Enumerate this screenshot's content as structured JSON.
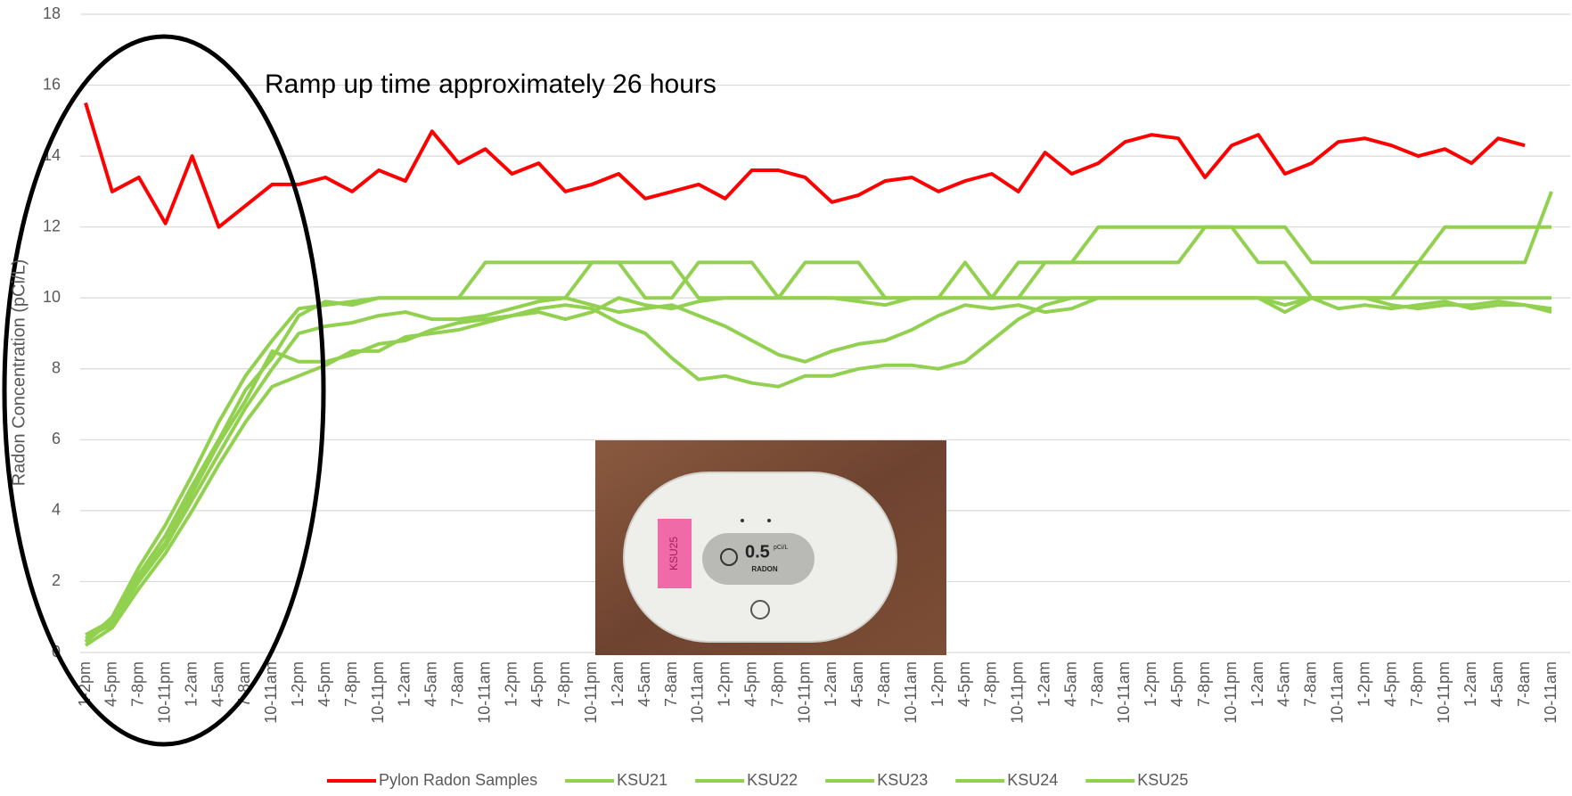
{
  "chart_data": {
    "type": "line",
    "ylabel": "Radon Concentration (pCi/L)",
    "annotation": "Ramp up time approximately 26 hours",
    "inset_photo": {
      "display_value": "0.5",
      "display_unit": "pCi/L",
      "display_label": "RADON",
      "sticker": "KSU25"
    },
    "categories": [
      "1-2pm",
      "4-5pm",
      "7-8pm",
      "10-11pm",
      "1-2am",
      "4-5am",
      "7-8am",
      "10-11am",
      "1-2pm",
      "4-5pm",
      "7-8pm",
      "10-11pm",
      "1-2am",
      "4-5am",
      "7-8am",
      "10-11am",
      "1-2pm",
      "4-5pm",
      "7-8pm",
      "10-11pm",
      "1-2am",
      "4-5am",
      "7-8am",
      "10-11am",
      "1-2pm",
      "4-5pm",
      "7-8pm",
      "10-11pm",
      "1-2am",
      "4-5am",
      "7-8am",
      "10-11am",
      "1-2pm",
      "4-5pm",
      "7-8pm",
      "10-11pm",
      "1-2am",
      "4-5am",
      "7-8am",
      "10-11am",
      "1-2pm",
      "4-5pm",
      "7-8pm",
      "10-11pm",
      "1-2am",
      "4-5am",
      "7-8am",
      "10-11am",
      "1-2pm",
      "4-5pm",
      "7-8pm",
      "10-11pm",
      "1-2am",
      "4-5am",
      "7-8am",
      "10-11am"
    ],
    "series": [
      {
        "name": "Pylon Radon Samples",
        "color": "#ff0000",
        "values": [
          15.5,
          13.0,
          13.4,
          12.1,
          14.0,
          12.0,
          12.6,
          13.2,
          13.2,
          13.4,
          13.0,
          13.6,
          13.3,
          14.7,
          13.8,
          14.2,
          13.5,
          13.8,
          13.0,
          13.2,
          13.5,
          12.8,
          13.0,
          13.2,
          12.8,
          13.6,
          13.6,
          13.4,
          12.7,
          12.9,
          13.3,
          13.4,
          13.0,
          13.3,
          13.5,
          13.0,
          14.1,
          13.5,
          13.8,
          14.4,
          14.6,
          14.5,
          13.4,
          14.3,
          14.6,
          13.5,
          13.8,
          14.4,
          14.5,
          14.3,
          14.0,
          14.2,
          13.8,
          14.5,
          14.3,
          null
        ]
      },
      {
        "name": "KSU21",
        "color": "#92d050",
        "values": [
          0.3,
          1.0,
          2.4,
          3.6,
          5.0,
          6.5,
          7.8,
          8.8,
          9.7,
          9.8,
          9.9,
          10,
          10,
          10,
          10,
          11,
          11,
          11,
          11,
          11,
          11,
          11,
          11,
          10,
          10,
          10,
          10,
          11,
          11,
          11,
          10,
          10,
          10,
          11,
          10,
          10,
          11,
          11,
          12,
          12,
          12,
          12,
          12,
          12,
          12,
          12,
          11,
          11,
          11,
          11,
          11,
          12,
          12,
          12,
          12,
          12
        ]
      },
      {
        "name": "KSU22",
        "color": "#92d050",
        "values": [
          0.5,
          0.9,
          2.2,
          3.3,
          4.7,
          6.0,
          7.4,
          8.3,
          9.5,
          9.9,
          9.8,
          10,
          10,
          10,
          10,
          10,
          10,
          10,
          10,
          11,
          11,
          10,
          10,
          11,
          11,
          11,
          10,
          10,
          10,
          10,
          10,
          10,
          10,
          10,
          10,
          11,
          11,
          11,
          11,
          11,
          11,
          11,
          12,
          12,
          11,
          11,
          10,
          10,
          10,
          10,
          11,
          11,
          11,
          11,
          11,
          13
        ]
      },
      {
        "name": "KSU23",
        "color": "#92d050",
        "values": [
          0.4,
          0.8,
          2.0,
          3.0,
          4.3,
          5.6,
          6.9,
          8.0,
          9.0,
          9.2,
          9.3,
          9.5,
          9.6,
          9.4,
          9.4,
          9.5,
          9.7,
          9.9,
          10,
          9.8,
          9.6,
          9.7,
          9.8,
          9.5,
          9.2,
          8.8,
          8.4,
          8.2,
          8.5,
          8.7,
          8.8,
          9.1,
          9.5,
          9.8,
          9.7,
          9.8,
          9.6,
          9.7,
          10,
          10,
          10,
          10,
          10,
          10,
          10,
          9.8,
          10,
          9.7,
          9.8,
          9.7,
          9.8,
          9.9,
          9.7,
          9.8,
          9.8,
          9.6
        ]
      },
      {
        "name": "KSU24",
        "color": "#92d050",
        "values": [
          0.2,
          0.7,
          1.8,
          2.8,
          4.0,
          5.3,
          6.5,
          7.5,
          7.8,
          8.1,
          8.5,
          8.5,
          8.9,
          9.0,
          9.1,
          9.3,
          9.5,
          9.7,
          9.8,
          9.7,
          9.3,
          9.0,
          8.3,
          7.7,
          7.8,
          7.6,
          7.5,
          7.8,
          7.8,
          8.0,
          8.1,
          8.1,
          8.0,
          8.2,
          8.8,
          9.4,
          9.8,
          10,
          10,
          10,
          10,
          10,
          10,
          10,
          10,
          9.6,
          10,
          10,
          10,
          9.8,
          9.7,
          9.8,
          9.8,
          9.9,
          9.8,
          9.7
        ]
      },
      {
        "name": "KSU25",
        "color": "#92d050",
        "values": [
          0.3,
          0.9,
          2.1,
          3.1,
          4.5,
          5.9,
          7.1,
          8.5,
          8.2,
          8.2,
          8.4,
          8.7,
          8.8,
          9.1,
          9.3,
          9.4,
          9.5,
          9.6,
          9.4,
          9.6,
          10,
          9.8,
          9.7,
          9.9,
          10,
          10,
          10,
          10,
          10,
          9.9,
          9.8,
          10,
          10,
          10,
          10,
          10,
          10,
          10,
          10,
          10,
          10,
          10,
          10,
          10,
          10,
          10,
          10,
          10,
          10,
          10,
          10,
          10,
          10,
          10,
          10,
          10
        ]
      }
    ],
    "ylim": [
      0,
      18
    ],
    "yticks": [
      0,
      2,
      4,
      6,
      8,
      10,
      12,
      14,
      16,
      18
    ],
    "grid": true,
    "legend": "bottom"
  }
}
